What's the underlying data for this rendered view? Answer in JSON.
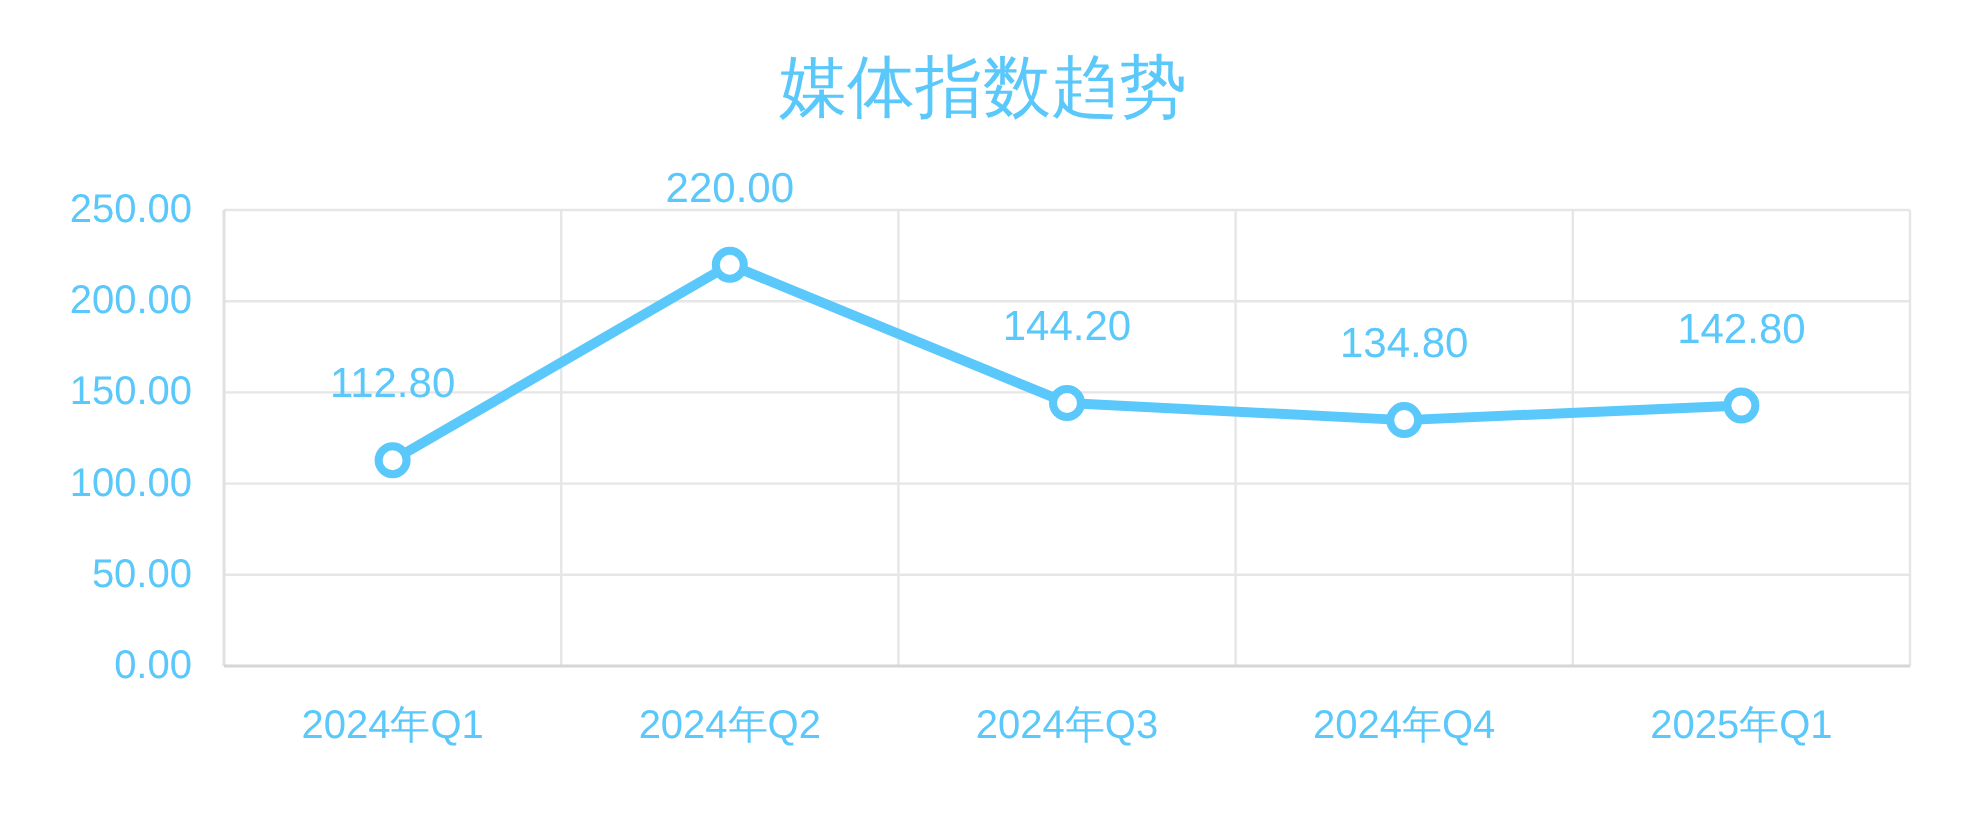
{
  "chart_data": {
    "type": "line",
    "title": "媒体指数趋势",
    "categories": [
      "2024年Q1",
      "2024年Q2",
      "2024年Q3",
      "2024年Q4",
      "2025年Q1"
    ],
    "values": [
      112.8,
      220.0,
      144.2,
      134.8,
      142.8
    ],
    "value_labels": [
      "112.80",
      "220.00",
      "144.20",
      "134.80",
      "142.80"
    ],
    "color": "#5ac8fa",
    "ylim": [
      0,
      250
    ],
    "yticks": [
      {
        "value": 0,
        "label": "0.00"
      },
      {
        "value": 50,
        "label": "50.00"
      },
      {
        "value": 100,
        "label": "100.00"
      },
      {
        "value": 150,
        "label": "150.00"
      },
      {
        "value": 200,
        "label": "200.00"
      },
      {
        "value": 250,
        "label": "250.00"
      }
    ],
    "grid": true,
    "marker": "circle",
    "line_style": "solid"
  }
}
